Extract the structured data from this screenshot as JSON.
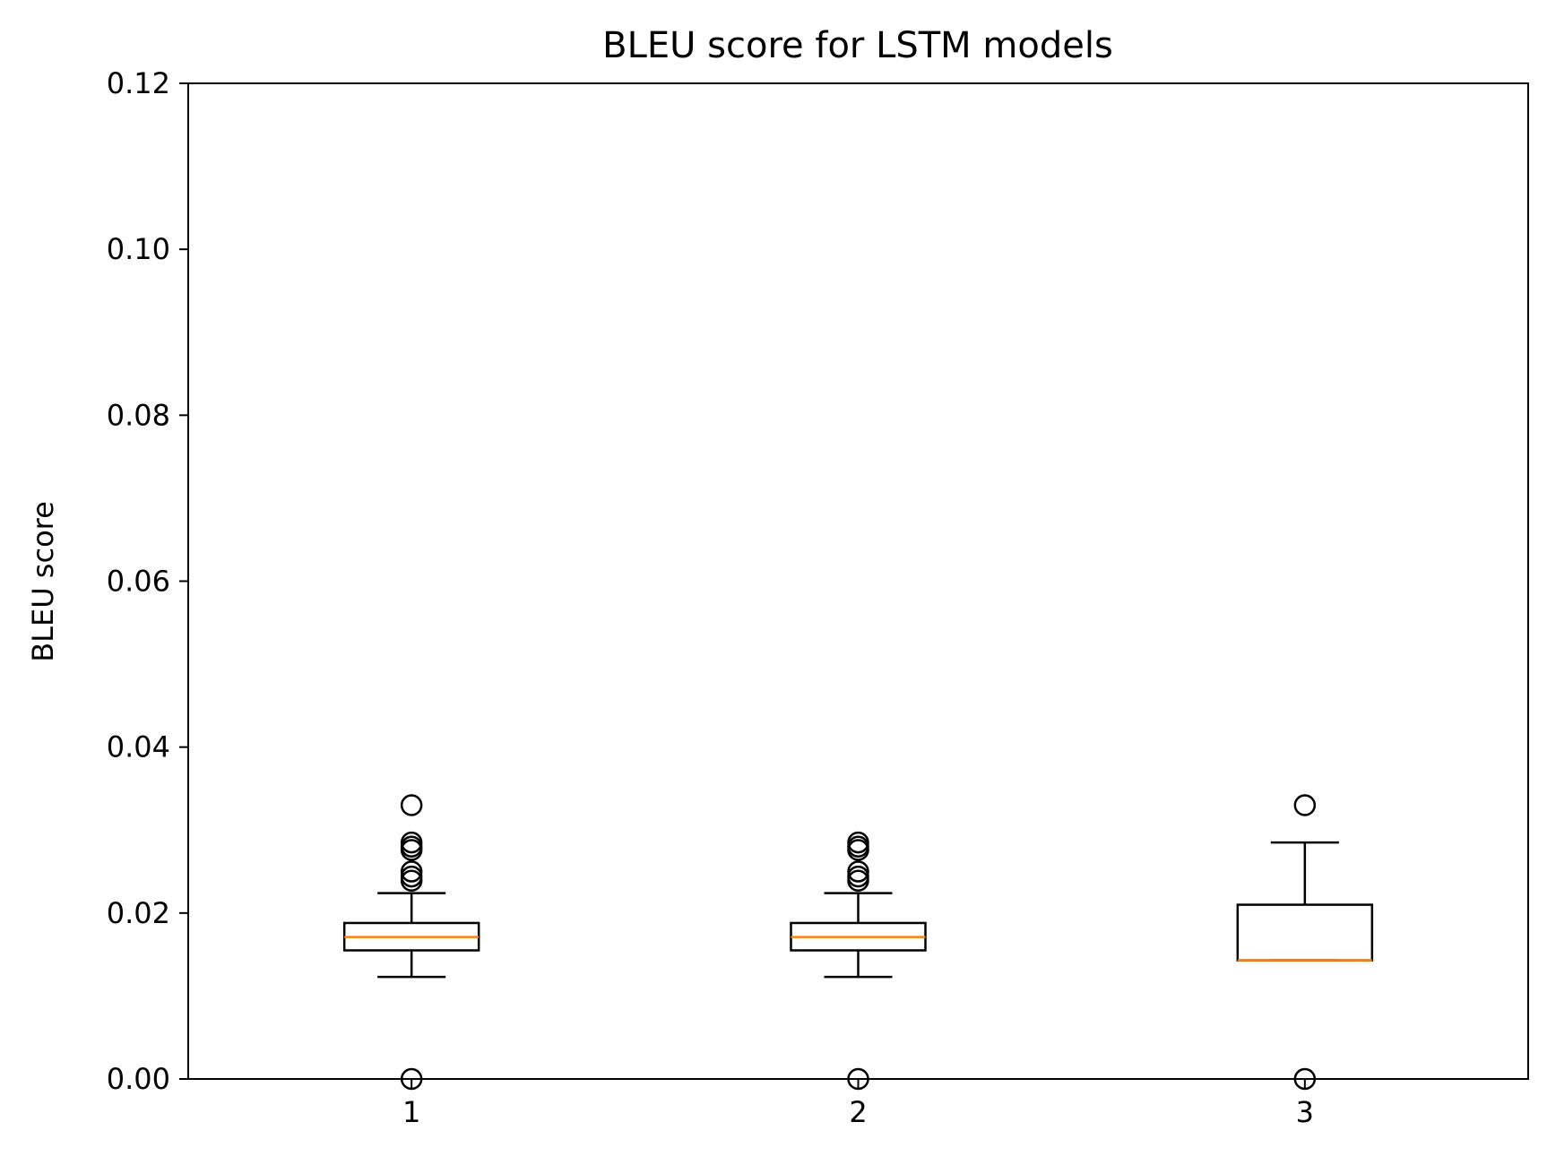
{
  "chart_data": {
    "type": "boxplot",
    "title": "BLEU score for LSTM models",
    "xlabel": "",
    "ylabel": "BLEU score",
    "ylim": [
      0,
      0.12
    ],
    "yticks": [
      "0.00",
      "0.02",
      "0.04",
      "0.06",
      "0.08",
      "0.10",
      "0.12"
    ],
    "categories": [
      "1",
      "2",
      "3"
    ],
    "grid": false,
    "boxes": [
      {
        "category": "1",
        "whisker_low": 0.0123,
        "q1": 0.0155,
        "median": 0.0171,
        "q3": 0.0188,
        "whisker_high": 0.0224,
        "outliers": [
          0.0,
          0.0239,
          0.0244,
          0.025,
          0.0276,
          0.028,
          0.0285,
          0.033
        ]
      },
      {
        "category": "2",
        "whisker_low": 0.0123,
        "q1": 0.0155,
        "median": 0.0171,
        "q3": 0.0188,
        "whisker_high": 0.0224,
        "outliers": [
          0.0,
          0.0239,
          0.0244,
          0.025,
          0.0276,
          0.028,
          0.0285
        ]
      },
      {
        "category": "3",
        "whisker_low": 0.0143,
        "q1": 0.0143,
        "median": 0.0143,
        "q3": 0.021,
        "whisker_high": 0.0285,
        "outliers": [
          0.0,
          0.033
        ]
      }
    ],
    "colors": {
      "box": "#000000",
      "median": "#ff7f0e",
      "outlier": "#000000"
    }
  }
}
